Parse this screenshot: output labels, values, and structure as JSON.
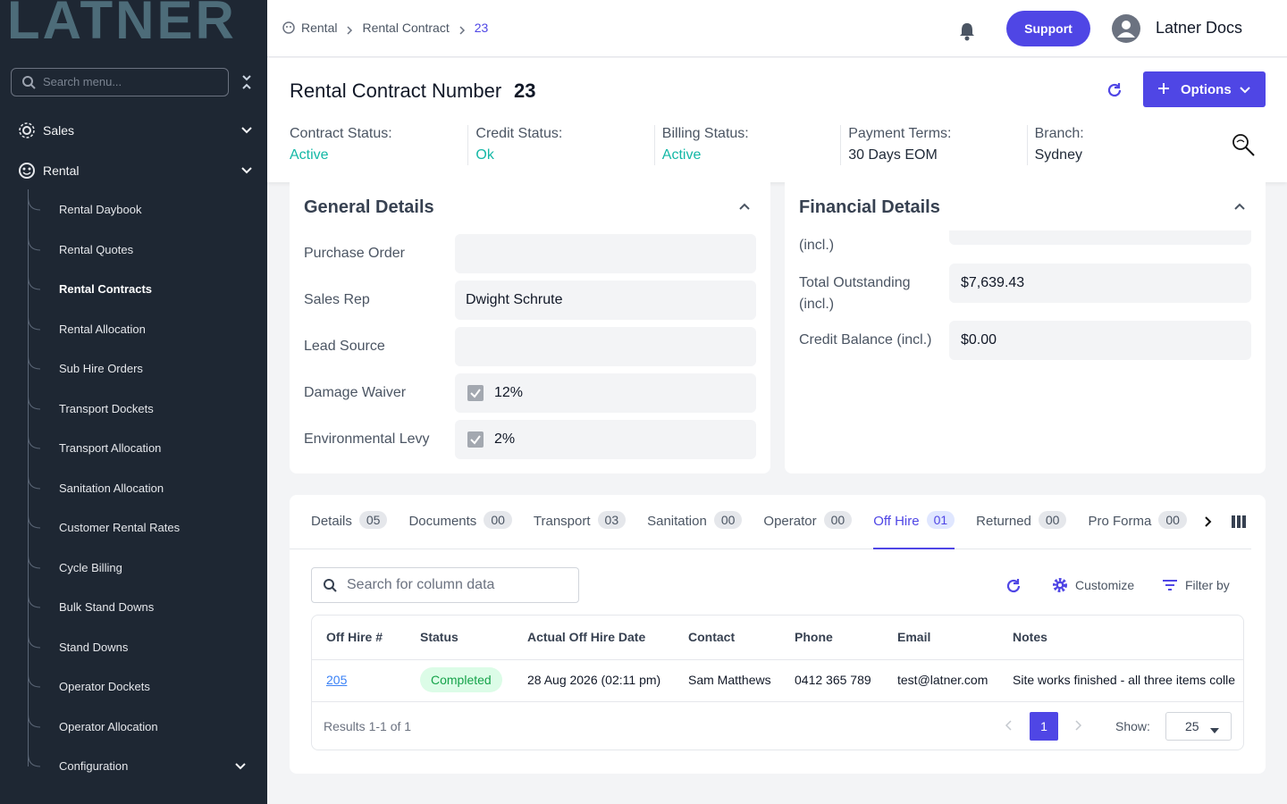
{
  "sidebar": {
    "logo": "LATNER",
    "search_placeholder": "Search menu...",
    "menu": [
      "Sales",
      "Rental"
    ],
    "submenu": [
      "Rental Daybook",
      "Rental Quotes",
      "Rental Contracts",
      "Rental Allocation",
      "Sub Hire Orders",
      "Transport Dockets",
      "Transport Allocation",
      "Sanitation Allocation",
      "Customer Rental Rates",
      "Cycle Billing",
      "Bulk Stand Downs",
      "Stand Downs",
      "Operator Dockets",
      "Operator Allocation",
      "Configuration"
    ],
    "active_submenu": 2
  },
  "topbar": {
    "breadcrumb": [
      "Rental",
      "Rental Contract",
      "23"
    ],
    "support": "Support",
    "user": "Latner Docs"
  },
  "header": {
    "title": "Rental Contract Number",
    "number": "23",
    "options": "Options",
    "statuses": [
      {
        "label": "Contract Status:",
        "value": "Active"
      },
      {
        "label": "Credit Status:",
        "value": "Ok"
      },
      {
        "label": "Billing Status:",
        "value": "Active"
      },
      {
        "label": "Payment Terms:",
        "value": "30 Days EOM"
      },
      {
        "label": "Branch:",
        "value": "Sydney"
      }
    ]
  },
  "general": {
    "title": "General Details",
    "fields": [
      {
        "label": "Purchase Order"
      },
      {
        "label": "Sales Rep",
        "value": "Dwight Schrute"
      },
      {
        "label": "Lead Source"
      },
      {
        "label": "Damage Waiver",
        "value": "12%",
        "checked": true
      },
      {
        "label": "Environmental Levy",
        "value": "2%",
        "checked": true
      }
    ]
  },
  "financial": {
    "title": "Financial Details",
    "partial_label": "(incl.)",
    "fields": [
      {
        "label": "Total Outstanding (incl.)",
        "value": "$7,639.43"
      },
      {
        "label": "Credit Balance (incl.)",
        "value": "$0.00"
      }
    ]
  },
  "tabs": {
    "items": [
      {
        "label": "Details",
        "count": "05"
      },
      {
        "label": "Documents",
        "count": "00"
      },
      {
        "label": "Transport",
        "count": "03"
      },
      {
        "label": "Sanitation",
        "count": "00"
      },
      {
        "label": "Operator",
        "count": "00"
      },
      {
        "label": "Off Hire",
        "count": "01"
      },
      {
        "label": "Returned",
        "count": "00"
      },
      {
        "label": "Pro Forma",
        "count": "00"
      }
    ],
    "active": 5
  },
  "table": {
    "search_placeholder": "Search for column data",
    "customize": "Customize",
    "filter": "Filter by",
    "columns": [
      "Off Hire #",
      "Status",
      "Actual Off Hire Date",
      "Contact",
      "Phone",
      "Email",
      "Notes"
    ],
    "rows": [
      [
        "205",
        "Completed",
        "28 Aug 2026 (02:11 pm)",
        "Sam Matthews",
        "0412 365 789",
        "test@latner.com",
        "Site works finished - all three items colle"
      ]
    ],
    "results": "Results 1-1 of 1",
    "page": "1",
    "show": "Show:",
    "per_page": "25"
  }
}
